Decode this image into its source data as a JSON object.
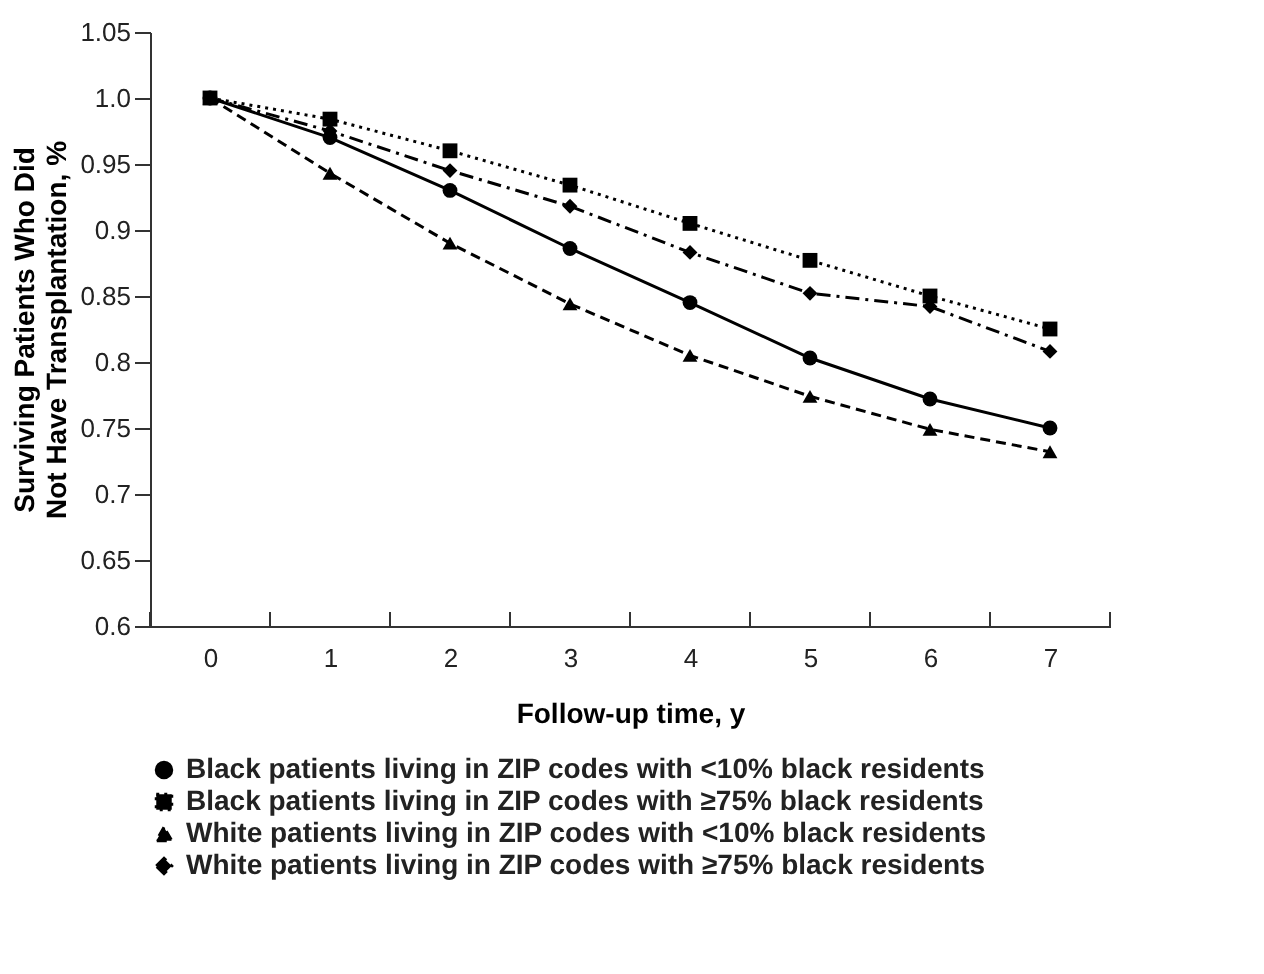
{
  "chart_data": {
    "type": "line",
    "xlabel": "Follow-up time, y",
    "ylabel": "Surviving Patients Who Did Not Have Transplantation, %",
    "categories": [
      "0",
      "1",
      "2",
      "3",
      "4",
      "5",
      "6",
      "7"
    ],
    "ylim": [
      0.6,
      1.05
    ],
    "yticks": [
      0.6,
      0.65,
      0.7,
      0.75,
      0.8,
      0.85,
      0.9,
      0.95,
      {
        "value": 1,
        "label": "1.0"
      },
      1.05
    ],
    "grid": false,
    "legend": "bottom",
    "series": [
      {
        "name": "Black patients living in ZIP codes with <10% black residents",
        "color": "#000000",
        "marker": "circle",
        "line_style": "solid",
        "values": [
          1.0,
          0.97,
          0.93,
          0.886,
          0.845,
          0.803,
          0.772,
          0.75
        ]
      },
      {
        "name": "Black patients living in ZIP codes with ≥75% black residents",
        "color": "#000000",
        "marker": "square",
        "line_style": "dotted",
        "values": [
          1.0,
          0.984,
          0.96,
          0.934,
          0.905,
          0.877,
          0.85,
          0.825
        ]
      },
      {
        "name": "White patients living in ZIP codes with <10% black residents",
        "color": "#000000",
        "marker": "triangle",
        "line_style": "dashed",
        "values": [
          1.0,
          0.943,
          0.89,
          0.844,
          0.805,
          0.774,
          0.749,
          0.732
        ]
      },
      {
        "name": "White patients living in ZIP codes with ≥75% black residents",
        "color": "#000000",
        "marker": "diamond",
        "line_style": "dashdot",
        "values": [
          1.0,
          0.975,
          0.945,
          0.918,
          0.883,
          0.852,
          0.842,
          0.808
        ]
      }
    ]
  }
}
